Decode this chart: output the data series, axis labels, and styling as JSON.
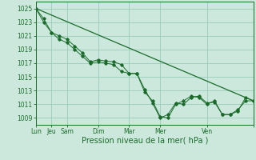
{
  "background_color": "#cce8dc",
  "grid_color": "#99ccbb",
  "line_color": "#1a6b2a",
  "marker_color": "#1a6b2a",
  "xlabel": "Pression niveau de la mer( hPa )",
  "xlabel_fontsize": 7,
  "ytick_labels": [
    1009,
    1011,
    1013,
    1015,
    1017,
    1019,
    1021,
    1023,
    1025
  ],
  "ylim": [
    1008.0,
    1026.0
  ],
  "xtick_positions": [
    0,
    1,
    2,
    4,
    6,
    8,
    11,
    14
  ],
  "xtick_labels": [
    "Lun",
    "Jeu",
    "Sam",
    "Dim",
    "Mar",
    "Mer",
    "Ven",
    ""
  ],
  "series1_x": [
    0,
    0.5,
    1.0,
    1.5,
    2.0,
    2.5,
    3.0,
    3.5,
    4.0,
    4.5,
    5.0,
    5.5,
    6.0,
    6.5,
    7.0,
    7.5,
    8.0,
    8.5,
    9.0,
    9.5,
    10.0,
    10.5,
    11.0,
    11.5,
    12.0,
    12.5,
    13.0,
    13.5,
    14.0
  ],
  "series1_y": [
    1025,
    1023.5,
    1021.5,
    1021.0,
    1020.5,
    1019.5,
    1018.5,
    1017.2,
    1017.5,
    1017.3,
    1017.2,
    1016.8,
    1015.5,
    1015.5,
    1013.2,
    1011.2,
    1009.0,
    1009.5,
    1011.2,
    1011.0,
    1012.0,
    1012.2,
    1011.2,
    1011.3,
    1009.5,
    1009.5,
    1010.2,
    1011.5,
    1011.5
  ],
  "series2_x": [
    0,
    0.5,
    1.0,
    1.5,
    2.0,
    2.5,
    3.0,
    3.5,
    4.0,
    4.5,
    5.0,
    5.5,
    6.0,
    6.5,
    7.0,
    7.5,
    8.0,
    8.5,
    9.0,
    9.5,
    10.0,
    10.5,
    11.0,
    11.5,
    12.0,
    12.5,
    13.0,
    13.5,
    14.0
  ],
  "series2_y": [
    1025,
    1023.0,
    1021.5,
    1020.5,
    1020.0,
    1019.0,
    1018.0,
    1017.0,
    1017.2,
    1017.0,
    1016.8,
    1015.8,
    1015.5,
    1015.5,
    1012.8,
    1011.5,
    1009.2,
    1009.0,
    1011.0,
    1011.5,
    1012.2,
    1012.0,
    1011.0,
    1011.5,
    1009.5,
    1009.5,
    1010.0,
    1012.0,
    1011.5
  ],
  "series3_x": [
    0,
    14
  ],
  "series3_y": [
    1025,
    1011.5
  ],
  "xmin": 0,
  "xmax": 14
}
